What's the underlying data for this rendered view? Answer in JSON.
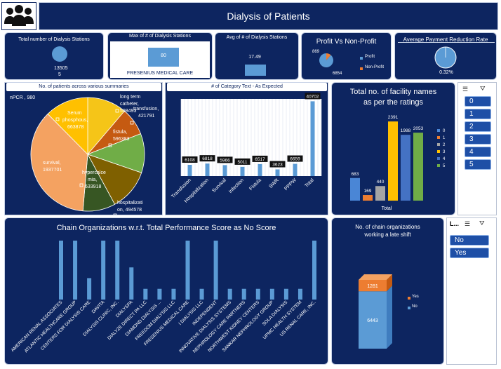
{
  "header": {
    "title": "Dialysis of Patients",
    "logo": "people-group-icon"
  },
  "kpi": {
    "stations": {
      "title": "Total number of Dialysis Stations",
      "value1": "13505",
      "value2": "5"
    },
    "max": {
      "title": "Max of # of Dialysis Stations",
      "value": "80",
      "label": "FRESENIUS MEDICAL CARE"
    },
    "avg": {
      "title": "Avg of # of Dialysis Stations",
      "value": "17.49"
    },
    "profit": {
      "title": "Profit Vs Non-Profit",
      "profit_value": "6854",
      "nonprofit_value": "869",
      "legend_profit": "Profit",
      "legend_nonprofit": "Non-Profit"
    },
    "payment": {
      "title": "Average Payment Reduction Rate",
      "value": "0.32%",
      "fraction": 0.0032
    }
  },
  "summaries": {
    "title": "No. of patients across various summaries",
    "labels": {
      "npcr": "nPCR , 980",
      "serum1": "Serum",
      "serum2": "phosphous,",
      "serum3": "663878",
      "lt1": "long term",
      "lt2": "catheter,",
      "lt3": "598493",
      "tr1": "transfusion,",
      "tr2": "421791",
      "fi1": "fistula,",
      "fi2": "596383",
      "hy1": "hypercalce",
      "hy2": "mia,",
      "hy3": "633918",
      "ho1": "hospitalizati",
      "ho2": "on, 494578",
      "su1": "survival,",
      "su2": "1937701"
    }
  },
  "category": {
    "title": "# of Category Text - As Expected"
  },
  "ratings": {
    "title1": "Total no. of facility names",
    "title2": "as per the ratings",
    "xlabel": "Total"
  },
  "ratings_slicer": {
    "items": [
      "0",
      "1",
      "2",
      "3",
      "4",
      "5"
    ]
  },
  "chain": {
    "title": "Chain Organizations w.r.t. Total Performance Score as No Score"
  },
  "late": {
    "title1": "No. of chain organizations",
    "title2": "working a late shift",
    "legend_yes": "Yes",
    "legend_no": "No"
  },
  "late_slicer": {
    "header": "L...",
    "items": [
      "No",
      "Yes"
    ]
  },
  "chart_data": [
    {
      "type": "pie",
      "categories": [
        "nPCR",
        "long term catheter",
        "transfusion",
        "fistula",
        "hypercalcemia",
        "hospitalization",
        "survival",
        "Serum phosphous"
      ],
      "values": [
        980,
        598493,
        421791,
        596383,
        633918,
        494578,
        1937701,
        663878
      ],
      "colors": [
        "#4a7ec7",
        "#f5c518",
        "#c55a11",
        "#70ad47",
        "#7f6000",
        "#375623",
        "#f4a261",
        "#ffc000"
      ]
    },
    {
      "type": "bar",
      "title": "# of Category Text - As Expected",
      "categories": [
        "Transfusion",
        "Hospitalization",
        "Survival",
        "Infection",
        "Fistula",
        "SWR",
        "PPPW",
        "Total"
      ],
      "values": [
        6108,
        6818,
        5966,
        5011,
        6517,
        3623,
        6659,
        40702
      ],
      "ylim": [
        0,
        42000
      ]
    },
    {
      "type": "bar",
      "title": "Total no. of facility names as per the ratings",
      "categories": [
        "Total"
      ],
      "series": [
        {
          "name": "0",
          "values": [
            683
          ],
          "color": "#4a86d6"
        },
        {
          "name": "1",
          "values": [
            169
          ],
          "color": "#ed7d31"
        },
        {
          "name": "2",
          "values": [
            440
          ],
          "color": "#a5a5a5"
        },
        {
          "name": "3",
          "values": [
            2391
          ],
          "color": "#ffc000"
        },
        {
          "name": "4",
          "values": [
            1988
          ],
          "color": "#4472c4"
        },
        {
          "name": "5",
          "values": [
            2053
          ],
          "color": "#70ad47"
        }
      ],
      "ylim": [
        0,
        2500
      ]
    },
    {
      "type": "bar",
      "title": "Chain Organizations w.r.t. Total Performance Score as No Score",
      "categories": [
        "AMERICAN RENAL ASSOCIATES",
        "ATLANTIC HEALTHCARE GROUP",
        "CENTERS FOR DIALYSIS CARE",
        "DAVITA",
        "DIALYSIS CLINIC, INC.",
        "DIALYSPA",
        "DIALYZE DIRECT PA LLC",
        "DIAMOND DIALYSIS ...",
        "FREEDOM DIALYSIS LLC",
        "FRESENIUS MEDICAL CARE",
        "I DIALYSIS LLC",
        "INDEPENDENT",
        "INNOVATIVE DIALYSIS SYSTEMS",
        "NEPHROLOGY CARE PARTNERS",
        "NORTHWEST KIDNEY CENTERS",
        "SANKAR NEPHROLOGY GROUP",
        "SOLA DIALYSIS",
        "UPMC HEALTH SYSTEM",
        "US RENAL CARE, INC."
      ],
      "values": [
        11,
        11,
        4,
        11,
        11,
        6,
        2,
        2,
        2,
        11,
        2,
        11,
        2,
        2,
        2,
        2,
        2,
        2,
        11
      ],
      "ylim": [
        0,
        11
      ]
    },
    {
      "type": "bar",
      "title": "No. of chain organizations working a late shift",
      "categories": [
        "Total"
      ],
      "series": [
        {
          "name": "No",
          "values": [
            6443
          ],
          "color": "#5b9bd5"
        },
        {
          "name": "Yes",
          "values": [
            1281
          ],
          "color": "#ed7d31"
        }
      ]
    }
  ]
}
